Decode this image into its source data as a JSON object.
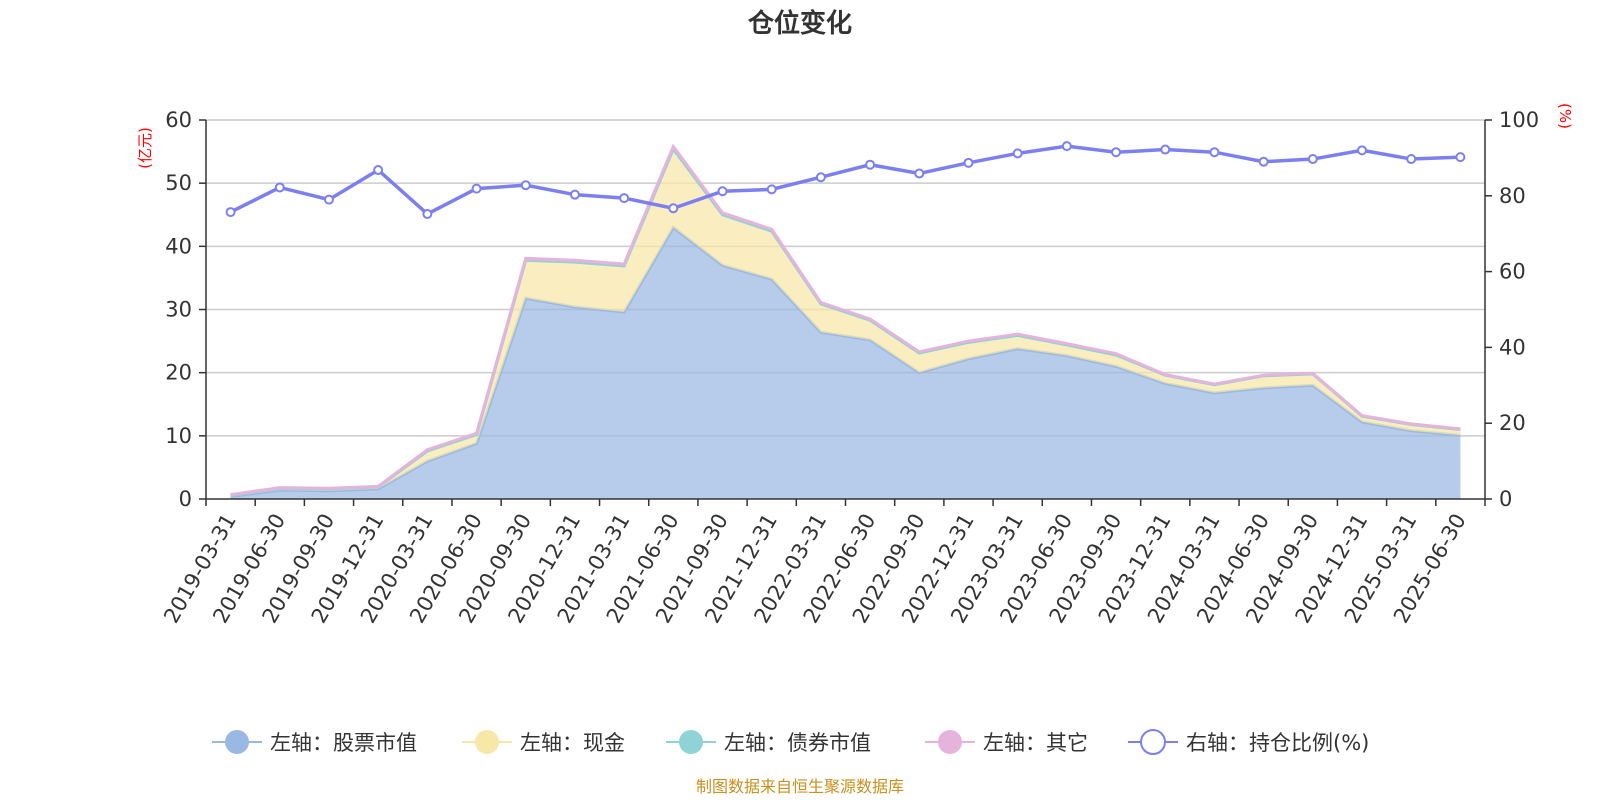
{
  "chart_data": {
    "type": "area",
    "title": "仓位变化",
    "left_axis_unit": "(亿元)",
    "right_axis_unit": "(%)",
    "ylim_left": [
      0,
      60
    ],
    "yticks_left": [
      "0",
      "10",
      "20",
      "30",
      "40",
      "50",
      "60"
    ],
    "ylim_right": [
      0,
      100
    ],
    "yticks_right": [
      "0",
      "20",
      "40",
      "60",
      "80",
      "100"
    ],
    "grid": true,
    "legend_position": "bottom",
    "categories": [
      "2019-03-31",
      "2019-06-30",
      "2019-09-30",
      "2019-12-31",
      "2020-03-31",
      "2020-06-30",
      "2020-09-30",
      "2020-12-31",
      "2021-03-31",
      "2021-06-30",
      "2021-09-30",
      "2021-12-31",
      "2022-03-31",
      "2022-06-30",
      "2022-09-30",
      "2022-12-31",
      "2023-03-31",
      "2023-06-30",
      "2023-09-30",
      "2023-12-31",
      "2024-03-31",
      "2024-06-30",
      "2024-09-30",
      "2024-12-31",
      "2025-03-31",
      "2025-06-30"
    ],
    "series": [
      {
        "name": "左轴：股票市值",
        "axis": "left",
        "stack": true,
        "color": "#9ab9e2",
        "values": [
          0.4,
          1.4,
          1.3,
          1.6,
          6.0,
          8.8,
          31.8,
          30.4,
          29.6,
          43.0,
          37.0,
          34.8,
          26.4,
          25.2,
          20.0,
          22.2,
          23.8,
          22.7,
          21.0,
          18.3,
          16.8,
          17.6,
          18.0,
          12.2,
          10.8,
          10.1
        ]
      },
      {
        "name": "左轴：现金",
        "axis": "left",
        "stack": true,
        "color": "#f8e8a8",
        "values": [
          0.2,
          0.3,
          0.3,
          0.3,
          1.6,
          1.4,
          6.0,
          7.1,
          7.3,
          12.4,
          8.0,
          7.6,
          4.5,
          3.1,
          3.1,
          2.6,
          2.1,
          1.7,
          1.8,
          1.3,
          1.3,
          1.9,
          1.8,
          0.9,
          1.0,
          0.9
        ]
      },
      {
        "name": "左轴：债券市值",
        "axis": "left",
        "stack": true,
        "color": "#8fd3d6",
        "values": [
          0,
          0,
          0,
          0,
          0,
          0,
          0,
          0,
          0,
          0,
          0,
          0,
          0,
          0,
          0,
          0,
          0,
          0,
          0,
          0,
          0,
          0,
          0,
          0,
          0,
          0
        ]
      },
      {
        "name": "左轴：其它",
        "axis": "left",
        "stack": true,
        "color": "#e6b3dc",
        "values": [
          0.1,
          0.1,
          0.1,
          0.1,
          0.2,
          0.2,
          0.3,
          0.3,
          0.3,
          0.4,
          0.3,
          0.3,
          0.2,
          0.2,
          0.2,
          0.2,
          0.2,
          0.2,
          0.2,
          0.1,
          0.1,
          0.1,
          0.1,
          0.1,
          0.1,
          0.1
        ]
      },
      {
        "name": "右轴：持仓比例(%)",
        "axis": "right",
        "type": "line",
        "color": "#7b7ff0",
        "values": [
          75.7,
          82.2,
          79.0,
          86.8,
          75.2,
          81.9,
          82.8,
          80.3,
          79.4,
          76.7,
          81.2,
          81.7,
          84.9,
          88.2,
          85.9,
          88.7,
          91.2,
          93.1,
          91.5,
          92.2,
          91.5,
          89.0,
          89.7,
          92.0,
          89.7,
          90.2
        ]
      }
    ],
    "source": "制图数据来自恒生聚源数据库"
  }
}
